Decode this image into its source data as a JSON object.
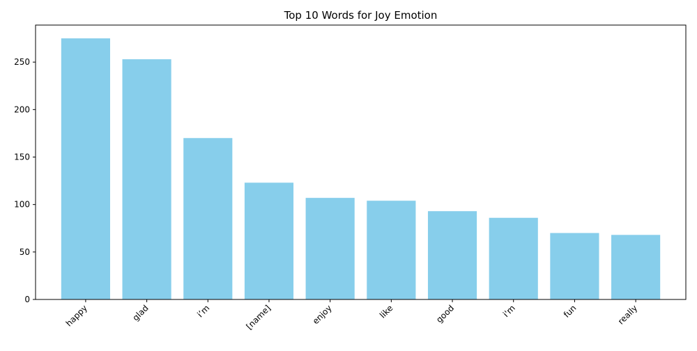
{
  "chart_data": {
    "type": "bar",
    "title": "Top 10 Words for Joy Emotion",
    "xlabel": "",
    "ylabel": "",
    "categories": [
      "happy",
      "glad",
      "i’m",
      "[name]",
      "enjoy",
      "like",
      "good",
      "i'm",
      "fun",
      "really"
    ],
    "values": [
      275,
      253,
      170,
      123,
      107,
      104,
      93,
      86,
      70,
      68
    ],
    "ylim": [
      0,
      289
    ],
    "yticks": [
      0,
      50,
      100,
      150,
      200,
      250
    ],
    "bar_color": "#87ceeb",
    "grid": false,
    "legend": "none",
    "xtick_rotation": 45
  }
}
